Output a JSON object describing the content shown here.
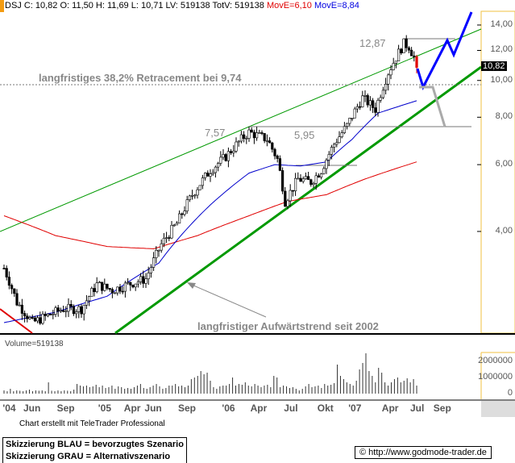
{
  "header": {
    "quote": "DSJ C: 10,82 O: 11,50 H: 11,69 L: 10,71 LV: 519138 TotV: 519138",
    "move6": "MovE=6,10",
    "move8": "MovE=8,84"
  },
  "last_price_tag": "10,82",
  "annotations": {
    "retracement": "langfristiges 38,2% Retracement bei 9,74",
    "level_757": "7,57",
    "level_595": "5,95",
    "level_1287": "12,87",
    "trend": "langfristiger Aufwärtstrend seit 2002"
  },
  "volume_label": "Volume=519138",
  "footer": {
    "credit": "Chart erstellt mit TeleTrader Professional",
    "legend_blue": "Skizzierung BLAU = bevorzugtes Szenario",
    "legend_grey": "Skizzierung GRAU = Alternativszenario",
    "url": "© http://www.godmode-trader.de"
  },
  "colors": {
    "blue": "#0000ff",
    "grey": "#aaaaaa",
    "green": "#009900",
    "red": "#e00000",
    "ma_blue": "#0000cc"
  },
  "chart_data": {
    "type": "candlestick",
    "y_scale": "log",
    "ylim": [
      2.2,
      15
    ],
    "yticks": [
      "14,00",
      "12,00",
      "10,00",
      "8,00",
      "6,00",
      "4,00"
    ],
    "ytick_values": [
      14,
      12,
      10,
      8,
      6,
      4
    ],
    "xticks": [
      "'04",
      "Jun",
      "Sep",
      "'05",
      "Apr",
      "Jun",
      "Sep",
      "'06",
      "Apr",
      "Jul",
      "Okt",
      "'07",
      "Apr",
      "Jul",
      "Sep"
    ],
    "xtick_weeks": [
      2,
      10,
      23,
      39,
      49,
      57,
      70,
      87,
      98,
      111,
      124,
      136,
      149,
      160,
      169
    ],
    "close_anchors": [
      [
        0,
        3.2
      ],
      [
        5,
        2.6
      ],
      [
        11,
        2.3
      ],
      [
        17,
        2.4
      ],
      [
        23,
        2.5
      ],
      [
        30,
        2.5
      ],
      [
        36,
        2.9
      ],
      [
        42,
        2.8
      ],
      [
        48,
        2.9
      ],
      [
        55,
        3.0
      ],
      [
        61,
        3.7
      ],
      [
        67,
        4.2
      ],
      [
        73,
        5.0
      ],
      [
        80,
        5.8
      ],
      [
        86,
        6.3
      ],
      [
        92,
        7.0
      ],
      [
        95,
        7.3
      ],
      [
        102,
        7.0
      ],
      [
        106,
        6.2
      ],
      [
        109,
        4.8
      ],
      [
        114,
        5.5
      ],
      [
        119,
        5.4
      ],
      [
        123,
        5.8
      ],
      [
        128,
        6.8
      ],
      [
        133,
        7.6
      ],
      [
        139,
        9.0
      ],
      [
        144,
        8.4
      ],
      [
        149,
        10.5
      ],
      [
        155,
        12.5
      ],
      [
        157,
        12.3
      ],
      [
        159,
        11.5
      ],
      [
        160,
        10.82
      ]
    ],
    "moving_average_short": [
      [
        0,
        2.3
      ],
      [
        20,
        2.45
      ],
      [
        40,
        2.7
      ],
      [
        60,
        3.3
      ],
      [
        80,
        4.7
      ],
      [
        95,
        5.7
      ],
      [
        105,
        6.0
      ],
      [
        115,
        5.95
      ],
      [
        125,
        6.1
      ],
      [
        135,
        7.0
      ],
      [
        145,
        8.2
      ],
      [
        160,
        8.84
      ]
    ],
    "moving_average_long": [
      [
        0,
        4.4
      ],
      [
        20,
        3.9
      ],
      [
        40,
        3.65
      ],
      [
        58,
        3.6
      ],
      [
        75,
        3.9
      ],
      [
        95,
        4.4
      ],
      [
        110,
        4.8
      ],
      [
        125,
        5.0
      ],
      [
        140,
        5.5
      ],
      [
        160,
        6.1
      ]
    ],
    "levels": [
      9.74,
      7.57,
      5.95,
      12.87
    ],
    "volume_yticks": [
      "2000000",
      "1000000",
      "0"
    ],
    "volume_ytick_values": [
      2000000,
      1000000,
      0
    ],
    "volume_thousands": [
      200,
      150,
      300,
      150,
      200,
      180,
      150,
      200,
      250,
      150,
      200,
      180,
      200,
      150,
      700,
      180,
      150,
      200,
      150,
      200,
      180,
      150,
      250,
      600,
      500,
      450,
      500,
      400,
      450,
      550,
      400,
      500,
      350,
      400,
      500,
      300,
      450,
      400,
      300,
      350,
      300,
      400,
      500,
      600,
      350,
      300,
      400,
      500,
      600,
      450,
      300,
      350,
      500,
      500,
      600,
      450,
      500,
      400,
      500,
      900,
      1000,
      1100,
      1400,
      1200,
      1300,
      800,
      400,
      300,
      450,
      500,
      500,
      600,
      1000,
      500,
      600,
      550,
      700,
      500,
      450,
      600,
      500,
      400,
      500,
      550,
      400,
      1100,
      1000,
      400,
      500,
      450,
      350,
      400,
      300,
      200,
      300,
      450,
      600,
      400,
      450,
      500,
      350,
      600,
      500,
      550,
      650,
      1800,
      1100,
      900,
      700,
      600,
      500,
      800,
      1500,
      1900,
      2500,
      1400,
      1100,
      700,
      1600,
      1300,
      700,
      500,
      700,
      900,
      1000,
      700,
      800,
      950,
      700,
      900,
      500
    ]
  }
}
